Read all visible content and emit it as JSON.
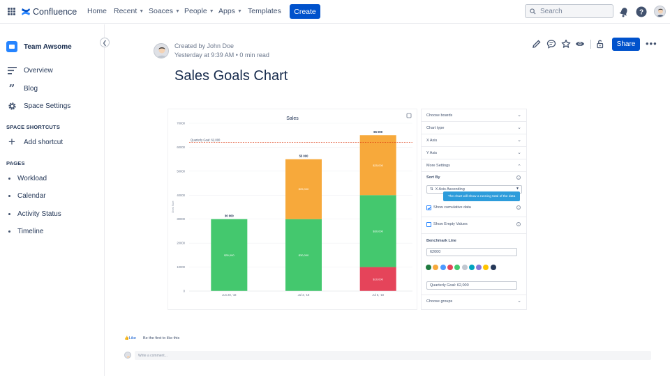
{
  "topbar": {
    "app_name": "Confluence",
    "nav": [
      "Home",
      "Recent",
      "Soaces",
      "People",
      "Apps",
      "Templates"
    ],
    "create_label": "Create",
    "search_placeholder": "Search"
  },
  "sidebar": {
    "space_name": "Team Awsome",
    "items": [
      "Overview",
      "Blog",
      "Space Settings"
    ],
    "shortcuts_heading": "SPACE SHORTCUTS",
    "add_shortcut": "Add shortcut",
    "pages_heading": "PAGES",
    "pages": [
      "Workload",
      "Calendar",
      "Activity Status",
      "Timeline"
    ]
  },
  "page": {
    "created_by": "Created by John Doe",
    "meta": "Yesterday at 9:39 AM  •  0 min read",
    "title": "Sales Goals Chart",
    "share_label": "Share",
    "like_label": "Like",
    "like_text": "Be the first to like this",
    "comment_placeholder": "Write a comment..."
  },
  "chart_data": {
    "type": "bar",
    "title": "Sales",
    "ylabel": "Deal Size",
    "ylim": [
      0,
      70000
    ],
    "yticks": [
      "0",
      "10000",
      "20000",
      "30000",
      "40000",
      "50000",
      "60000",
      "70000"
    ],
    "categories": [
      "Jun 28, '18",
      "Jul 3, '18",
      "Jul 5, '18"
    ],
    "series": [
      {
        "color": "#e5445a",
        "values": [
          0,
          0,
          10000
        ],
        "labels": [
          "",
          "",
          "$10,000"
        ]
      },
      {
        "color": "#44c86e",
        "values": [
          30000,
          30000,
          30000
        ],
        "labels": [
          "$30,000",
          "$30,000",
          "$30,000"
        ]
      },
      {
        "color": "#f7a93b",
        "values": [
          0,
          25000,
          25000
        ],
        "labels": [
          "",
          "$25,000",
          "$25,000"
        ]
      }
    ],
    "totals": [
      "30 000",
      "55 000",
      "65 000"
    ],
    "benchmark": {
      "value": 62000,
      "label": "Quarterly Goal: 62,000",
      "color": "#de350b"
    }
  },
  "settings": {
    "rows": [
      "Choose boards",
      "Chart type",
      "X Axis",
      "Y Axis",
      "More Settings"
    ],
    "sort_by_label": "Sort By",
    "sort_value": "X Axis Ascending",
    "tooltip": "The chart will show a running total of the data",
    "cumulative_label": "Show cumulative data",
    "empty_label": "Show Empty Values",
    "benchmark_label": "Benchmark Line",
    "benchmark_value": "62000",
    "benchmark_text": "Quarterly Goal: 62,000",
    "choose_groups": "Choose groups",
    "swatches": [
      "#1f7a3f",
      "#f7a93b",
      "#4c9aff",
      "#e5445a",
      "#44c86e",
      "#c1c7d0",
      "#00a3bf",
      "#8777d9",
      "#ffc400",
      "#253858"
    ]
  }
}
